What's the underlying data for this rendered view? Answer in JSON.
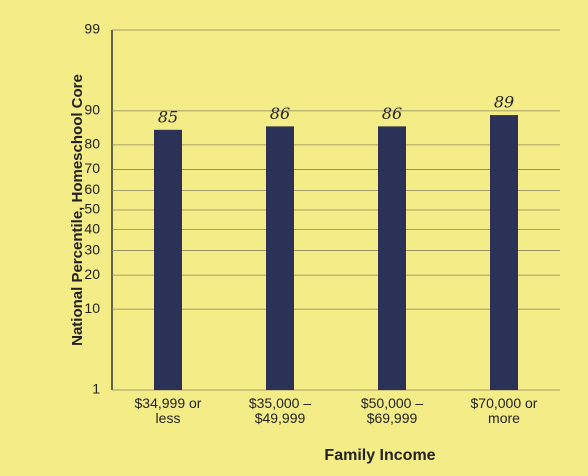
{
  "chart_data": {
    "type": "bar",
    "y_label": "National Percentile, Homeschool Core",
    "x_label": "Family Income",
    "categories": [
      "$34,999 or less",
      "$35,000 – $49,999",
      "$50,000 – $69,999",
      "$70,000 or more"
    ],
    "values": [
      85,
      86,
      86,
      89
    ],
    "color": "#2b3157",
    "ylim": [
      1,
      99
    ],
    "yticks": [
      1,
      10,
      20,
      30,
      40,
      50,
      60,
      70,
      80,
      90,
      99
    ],
    "yscale": "normal-percentile",
    "grid": true
  }
}
